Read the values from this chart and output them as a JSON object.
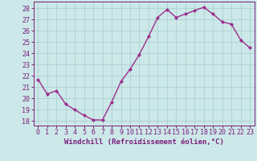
{
  "x": [
    0,
    1,
    2,
    3,
    4,
    5,
    6,
    7,
    8,
    9,
    10,
    11,
    12,
    13,
    14,
    15,
    16,
    17,
    18,
    19,
    20,
    21,
    22,
    23
  ],
  "y": [
    21.7,
    20.4,
    20.7,
    19.5,
    19.0,
    18.5,
    18.1,
    18.1,
    19.7,
    21.5,
    22.6,
    23.9,
    25.5,
    27.2,
    27.9,
    27.2,
    27.5,
    27.8,
    28.1,
    27.5,
    26.8,
    26.6,
    25.2,
    24.5
  ],
  "line_color": "#9b2d8e",
  "marker": "D",
  "marker_size": 2.0,
  "linewidth": 1.0,
  "bg_color": "#cce8e8",
  "grid_color": "#b0d4d4",
  "xlabel": "Windchill (Refroidissement éolien,°C)",
  "xlabel_color": "#7b1d7e",
  "tick_color": "#7b1d7e",
  "ylabel_ticks": [
    18,
    19,
    20,
    21,
    22,
    23,
    24,
    25,
    26,
    27,
    28
  ],
  "ylim": [
    17.6,
    28.6
  ],
  "xlim": [
    -0.5,
    23.5
  ],
  "xtick_labels": [
    "0",
    "1",
    "2",
    "3",
    "4",
    "5",
    "6",
    "7",
    "8",
    "9",
    "10",
    "11",
    "12",
    "13",
    "14",
    "15",
    "16",
    "17",
    "18",
    "19",
    "20",
    "21",
    "22",
    "23"
  ],
  "xlabel_fontsize": 6.5,
  "tick_fontsize": 6.0
}
